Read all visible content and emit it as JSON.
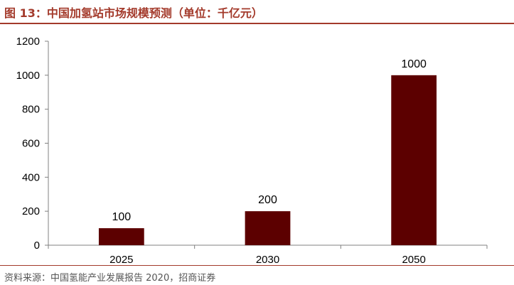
{
  "figure_title": "图 13：中国加氢站市场规模预测（单位：千亿元）",
  "source": "资料来源：中国氢能产业发展报告 2020，招商证券",
  "colors": {
    "accent": "#a33a2b",
    "bar": "#5c0000",
    "axis": "#808080"
  },
  "chart_data": {
    "type": "bar",
    "title": "",
    "xlabel": "",
    "ylabel": "",
    "categories": [
      "2025",
      "2030",
      "2050"
    ],
    "values": [
      100,
      200,
      1000
    ],
    "ylim": [
      0,
      1200
    ],
    "yticks": [
      0,
      200,
      400,
      600,
      800,
      1000,
      1200
    ],
    "grid": false,
    "legend": "none",
    "data_labels": [
      "100",
      "200",
      "1000"
    ]
  }
}
